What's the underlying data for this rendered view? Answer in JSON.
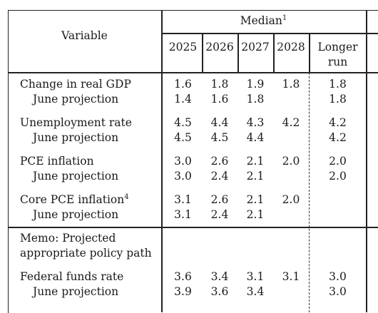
{
  "header": {
    "variable": "Variable",
    "median": "Median",
    "median_note": "1",
    "years": [
      "2025",
      "2026",
      "2027",
      "2028"
    ],
    "longer_run_line1": "Longer",
    "longer_run_line2": "run"
  },
  "rows": {
    "gdp": {
      "label": "Change in real GDP",
      "values": [
        "1.6",
        "1.8",
        "1.9",
        "1.8",
        "1.8"
      ]
    },
    "gdp_june": {
      "label": "June projection",
      "values": [
        "1.4",
        "1.6",
        "1.8",
        "",
        "1.8"
      ]
    },
    "unemp": {
      "label": "Unemployment rate",
      "values": [
        "4.5",
        "4.4",
        "4.3",
        "4.2",
        "4.2"
      ]
    },
    "unemp_june": {
      "label": "June projection",
      "values": [
        "4.5",
        "4.5",
        "4.4",
        "",
        "4.2"
      ]
    },
    "pce": {
      "label": "PCE inflation",
      "values": [
        "3.0",
        "2.6",
        "2.1",
        "2.0",
        "2.0"
      ]
    },
    "pce_june": {
      "label": "June projection",
      "values": [
        "3.0",
        "2.4",
        "2.1",
        "",
        "2.0"
      ]
    },
    "core": {
      "label": "Core PCE inflation",
      "note": "4",
      "values": [
        "3.1",
        "2.6",
        "2.1",
        "2.0",
        ""
      ]
    },
    "core_june": {
      "label": "June projection",
      "values": [
        "3.1",
        "2.4",
        "2.1",
        "",
        ""
      ]
    },
    "ffr": {
      "label": "Federal funds rate",
      "values": [
        "3.6",
        "3.4",
        "3.1",
        "3.1",
        "3.0"
      ]
    },
    "ffr_june": {
      "label": "June projection",
      "values": [
        "3.9",
        "3.6",
        "3.4",
        "",
        "3.0"
      ]
    }
  },
  "memo": {
    "line1": "Memo: Projected",
    "line2": "appropriate policy path"
  }
}
